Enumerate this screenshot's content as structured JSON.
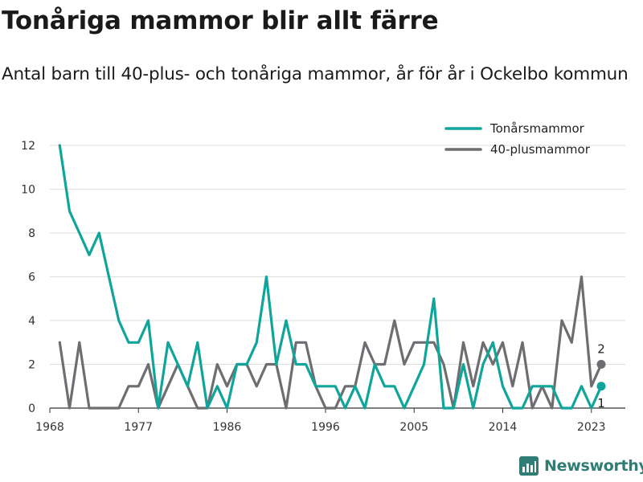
{
  "title": "Tonåriga mammor blir allt färre",
  "subtitle": "Antal barn till 40-plus- och tonåriga mammor, år för år i Ockelbo kommun",
  "logo": {
    "text": "Newsworthy",
    "icon": "newsworthy-chart-icon",
    "color": "#2f7d74"
  },
  "chart_data": {
    "type": "line",
    "title": "Tonåriga mammor blir allt färre",
    "subtitle": "Antal barn till 40-plus- och tonåriga mammor, år för år i Ockelbo kommun",
    "xlabel": "",
    "ylabel": "",
    "xlim": [
      1968,
      2024
    ],
    "ylim": [
      0,
      12
    ],
    "yticks": [
      0,
      2,
      4,
      6,
      8,
      10,
      12
    ],
    "xticks": [
      1968,
      1977,
      1986,
      1996,
      2005,
      2014,
      2023
    ],
    "grid": "horizontal",
    "legend_position": "top-right",
    "x": [
      1969,
      1970,
      1971,
      1972,
      1973,
      1974,
      1975,
      1976,
      1977,
      1978,
      1979,
      1980,
      1981,
      1982,
      1983,
      1984,
      1985,
      1986,
      1987,
      1988,
      1989,
      1990,
      1991,
      1992,
      1993,
      1994,
      1995,
      1996,
      1997,
      1998,
      1999,
      2000,
      2001,
      2002,
      2003,
      2004,
      2005,
      2006,
      2007,
      2008,
      2009,
      2010,
      2011,
      2012,
      2013,
      2014,
      2015,
      2016,
      2017,
      2018,
      2019,
      2020,
      2021,
      2022,
      2023,
      2024
    ],
    "series": [
      {
        "name": "Tonårsmammor",
        "color": "#10a59a",
        "values": [
          12,
          9,
          8,
          7,
          8,
          6,
          4,
          3,
          3,
          4,
          0,
          3,
          2,
          1,
          3,
          0,
          1,
          0,
          2,
          2,
          3,
          6,
          2,
          4,
          2,
          2,
          1,
          1,
          1,
          0,
          1,
          0,
          2,
          1,
          1,
          0,
          1,
          2,
          5,
          0,
          0,
          2,
          0,
          2,
          3,
          1,
          0,
          0,
          1,
          1,
          1,
          0,
          0,
          1,
          0,
          1
        ],
        "end_label": "1"
      },
      {
        "name": "40-plusmammor",
        "color": "#6e6e72",
        "values": [
          3,
          0,
          3,
          0,
          0,
          0,
          0,
          1,
          1,
          2,
          0,
          1,
          2,
          1,
          0,
          0,
          2,
          1,
          2,
          2,
          1,
          2,
          2,
          0,
          3,
          3,
          1,
          0,
          0,
          1,
          1,
          3,
          2,
          2,
          4,
          2,
          3,
          3,
          3,
          2,
          0,
          3,
          1,
          3,
          2,
          3,
          1,
          3,
          0,
          1,
          0,
          4,
          3,
          6,
          1,
          2
        ],
        "end_label": "2"
      }
    ]
  }
}
